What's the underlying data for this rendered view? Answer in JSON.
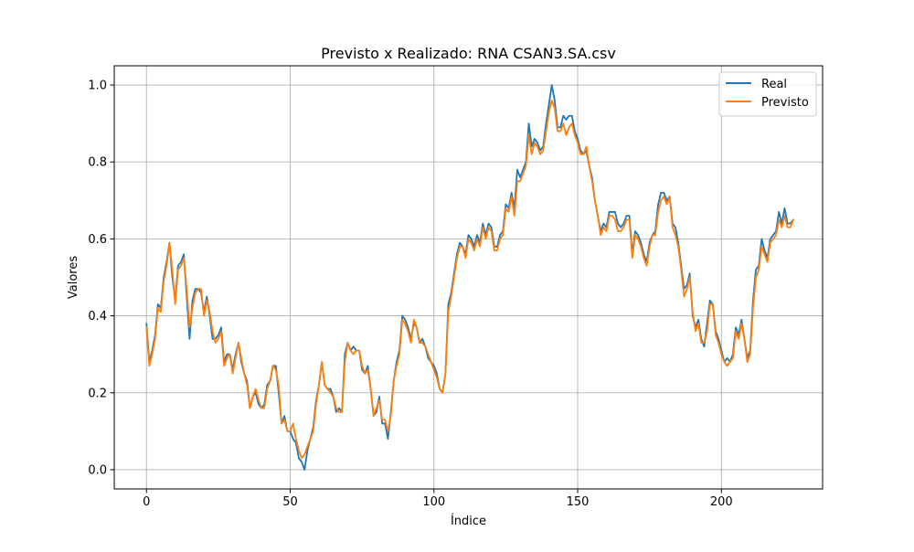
{
  "chart_data": {
    "type": "line",
    "title": "Previsto x Realizado: RNA CSAN3.SA.csv",
    "xlabel": "Índice",
    "ylabel": "Valores",
    "xlim": [
      -11.2,
      235.2
    ],
    "ylim": [
      -0.05,
      1.05
    ],
    "xticks": [
      0,
      50,
      100,
      150,
      200
    ],
    "yticks": [
      0.0,
      0.2,
      0.4,
      0.6,
      0.8,
      1.0
    ],
    "xtick_labels": [
      "0",
      "50",
      "100",
      "150",
      "200"
    ],
    "ytick_labels": [
      "0.0",
      "0.2",
      "0.4",
      "0.6",
      "0.8",
      "1.0"
    ],
    "grid": true,
    "legend_position": "top-right",
    "colors": {
      "real": "#1f77b4",
      "previsto": "#ff7f0e",
      "grid": "#b0b0b0"
    },
    "series": [
      {
        "name": "Real",
        "values": [
          0.38,
          0.28,
          0.31,
          0.35,
          0.43,
          0.42,
          0.5,
          0.54,
          0.59,
          0.5,
          0.44,
          0.53,
          0.54,
          0.56,
          0.45,
          0.34,
          0.44,
          0.47,
          0.47,
          0.46,
          0.41,
          0.45,
          0.4,
          0.34,
          0.34,
          0.35,
          0.37,
          0.28,
          0.3,
          0.3,
          0.26,
          0.3,
          0.33,
          0.28,
          0.25,
          0.23,
          0.16,
          0.19,
          0.2,
          0.17,
          0.16,
          0.17,
          0.22,
          0.23,
          0.27,
          0.27,
          0.2,
          0.12,
          0.14,
          0.1,
          0.1,
          0.08,
          0.07,
          0.03,
          0.02,
          0.0,
          0.05,
          0.08,
          0.11,
          0.18,
          0.22,
          0.28,
          0.22,
          0.21,
          0.21,
          0.19,
          0.15,
          0.16,
          0.15,
          0.3,
          0.33,
          0.31,
          0.32,
          0.31,
          0.31,
          0.26,
          0.25,
          0.27,
          0.21,
          0.14,
          0.15,
          0.19,
          0.12,
          0.12,
          0.08,
          0.15,
          0.23,
          0.28,
          0.31,
          0.4,
          0.39,
          0.37,
          0.34,
          0.38,
          0.37,
          0.33,
          0.34,
          0.32,
          0.29,
          0.28,
          0.27,
          0.25,
          0.21,
          0.2,
          0.25,
          0.43,
          0.46,
          0.51,
          0.56,
          0.59,
          0.58,
          0.56,
          0.61,
          0.6,
          0.58,
          0.61,
          0.59,
          0.64,
          0.61,
          0.64,
          0.63,
          0.58,
          0.58,
          0.61,
          0.62,
          0.69,
          0.68,
          0.72,
          0.68,
          0.78,
          0.76,
          0.78,
          0.8,
          0.9,
          0.84,
          0.86,
          0.85,
          0.83,
          0.84,
          0.9,
          0.95,
          1.0,
          0.96,
          0.89,
          0.89,
          0.92,
          0.91,
          0.92,
          0.92,
          0.88,
          0.86,
          0.83,
          0.82,
          0.83,
          0.79,
          0.76,
          0.7,
          0.66,
          0.62,
          0.64,
          0.63,
          0.67,
          0.67,
          0.67,
          0.64,
          0.63,
          0.64,
          0.66,
          0.66,
          0.56,
          0.62,
          0.61,
          0.59,
          0.56,
          0.54,
          0.59,
          0.61,
          0.62,
          0.69,
          0.72,
          0.72,
          0.7,
          0.71,
          0.64,
          0.63,
          0.59,
          0.53,
          0.47,
          0.48,
          0.51,
          0.4,
          0.37,
          0.39,
          0.34,
          0.32,
          0.38,
          0.44,
          0.43,
          0.36,
          0.34,
          0.31,
          0.28,
          0.29,
          0.28,
          0.3,
          0.37,
          0.35,
          0.39,
          0.34,
          0.29,
          0.31,
          0.44,
          0.52,
          0.53,
          0.6,
          0.57,
          0.55,
          0.6,
          0.61,
          0.62,
          0.67,
          0.64,
          0.68,
          0.64,
          0.64,
          0.65
        ]
      },
      {
        "name": "Previsto",
        "values": [
          0.37,
          0.27,
          0.3,
          0.34,
          0.42,
          0.41,
          0.49,
          0.53,
          0.59,
          0.52,
          0.43,
          0.52,
          0.53,
          0.55,
          0.47,
          0.37,
          0.42,
          0.46,
          0.47,
          0.47,
          0.4,
          0.44,
          0.41,
          0.36,
          0.33,
          0.34,
          0.36,
          0.27,
          0.29,
          0.3,
          0.25,
          0.29,
          0.33,
          0.29,
          0.25,
          0.22,
          0.16,
          0.19,
          0.21,
          0.18,
          0.16,
          0.16,
          0.21,
          0.23,
          0.27,
          0.26,
          0.22,
          0.12,
          0.13,
          0.1,
          0.1,
          0.12,
          0.08,
          0.05,
          0.03,
          0.04,
          0.06,
          0.08,
          0.1,
          0.17,
          0.22,
          0.28,
          0.22,
          0.21,
          0.2,
          0.19,
          0.16,
          0.15,
          0.15,
          0.28,
          0.33,
          0.31,
          0.3,
          0.31,
          0.31,
          0.27,
          0.25,
          0.26,
          0.21,
          0.14,
          0.16,
          0.18,
          0.13,
          0.13,
          0.1,
          0.14,
          0.23,
          0.27,
          0.3,
          0.39,
          0.38,
          0.36,
          0.33,
          0.39,
          0.37,
          0.33,
          0.33,
          0.32,
          0.3,
          0.28,
          0.26,
          0.24,
          0.21,
          0.2,
          0.25,
          0.41,
          0.45,
          0.5,
          0.55,
          0.58,
          0.58,
          0.55,
          0.6,
          0.59,
          0.57,
          0.6,
          0.58,
          0.63,
          0.6,
          0.63,
          0.62,
          0.57,
          0.57,
          0.6,
          0.61,
          0.68,
          0.67,
          0.71,
          0.66,
          0.75,
          0.75,
          0.77,
          0.79,
          0.87,
          0.82,
          0.85,
          0.84,
          0.82,
          0.83,
          0.88,
          0.93,
          0.96,
          0.94,
          0.88,
          0.88,
          0.9,
          0.87,
          0.89,
          0.9,
          0.87,
          0.85,
          0.82,
          0.82,
          0.84,
          0.79,
          0.75,
          0.7,
          0.66,
          0.61,
          0.63,
          0.62,
          0.66,
          0.66,
          0.65,
          0.62,
          0.62,
          0.63,
          0.65,
          0.65,
          0.55,
          0.61,
          0.6,
          0.58,
          0.55,
          0.53,
          0.58,
          0.61,
          0.61,
          0.67,
          0.7,
          0.71,
          0.69,
          0.71,
          0.63,
          0.61,
          0.58,
          0.52,
          0.45,
          0.47,
          0.5,
          0.41,
          0.36,
          0.38,
          0.33,
          0.33,
          0.36,
          0.43,
          0.43,
          0.35,
          0.33,
          0.3,
          0.28,
          0.27,
          0.28,
          0.29,
          0.36,
          0.34,
          0.38,
          0.34,
          0.28,
          0.3,
          0.42,
          0.5,
          0.52,
          0.58,
          0.56,
          0.54,
          0.59,
          0.6,
          0.61,
          0.65,
          0.63,
          0.66,
          0.63,
          0.63,
          0.65
        ]
      }
    ]
  }
}
